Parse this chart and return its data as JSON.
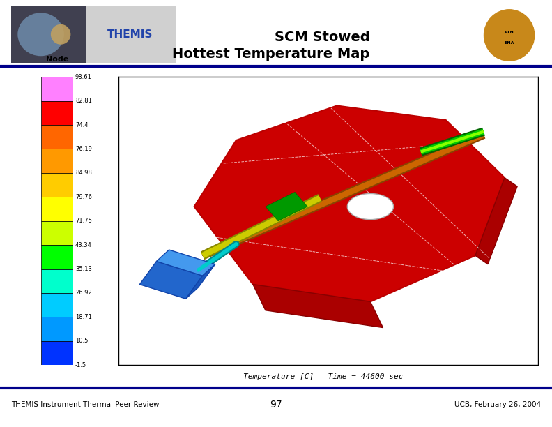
{
  "title_line1": "SCM Stowed",
  "title_line2": "Hottest Temperature Map",
  "footer_left": "THEMIS Instrument Thermal Peer Review",
  "footer_center": "97",
  "footer_right": "UCB, February 26, 2004",
  "colorbar_label": "Node",
  "colorbar_values": [
    "98.61",
    "82.81",
    "74.4",
    "76.19",
    "84.98",
    "79.76",
    "71.75",
    "43.34",
    "35.13",
    "26.92",
    "18.71",
    "10.5",
    "-1.5"
  ],
  "colorbar_colors": [
    "#ff80ff",
    "#ff0000",
    "#ff6600",
    "#ff9900",
    "#ffcc00",
    "#ffff00",
    "#ccff00",
    "#00ff00",
    "#00ffcc",
    "#00ccff",
    "#0099ff",
    "#0033ff",
    "#1a0030"
  ],
  "xlabel": "Temperature [C]   Time = 44600 sec",
  "background_color": "#ffffff",
  "footer_line_color": "#00008b"
}
